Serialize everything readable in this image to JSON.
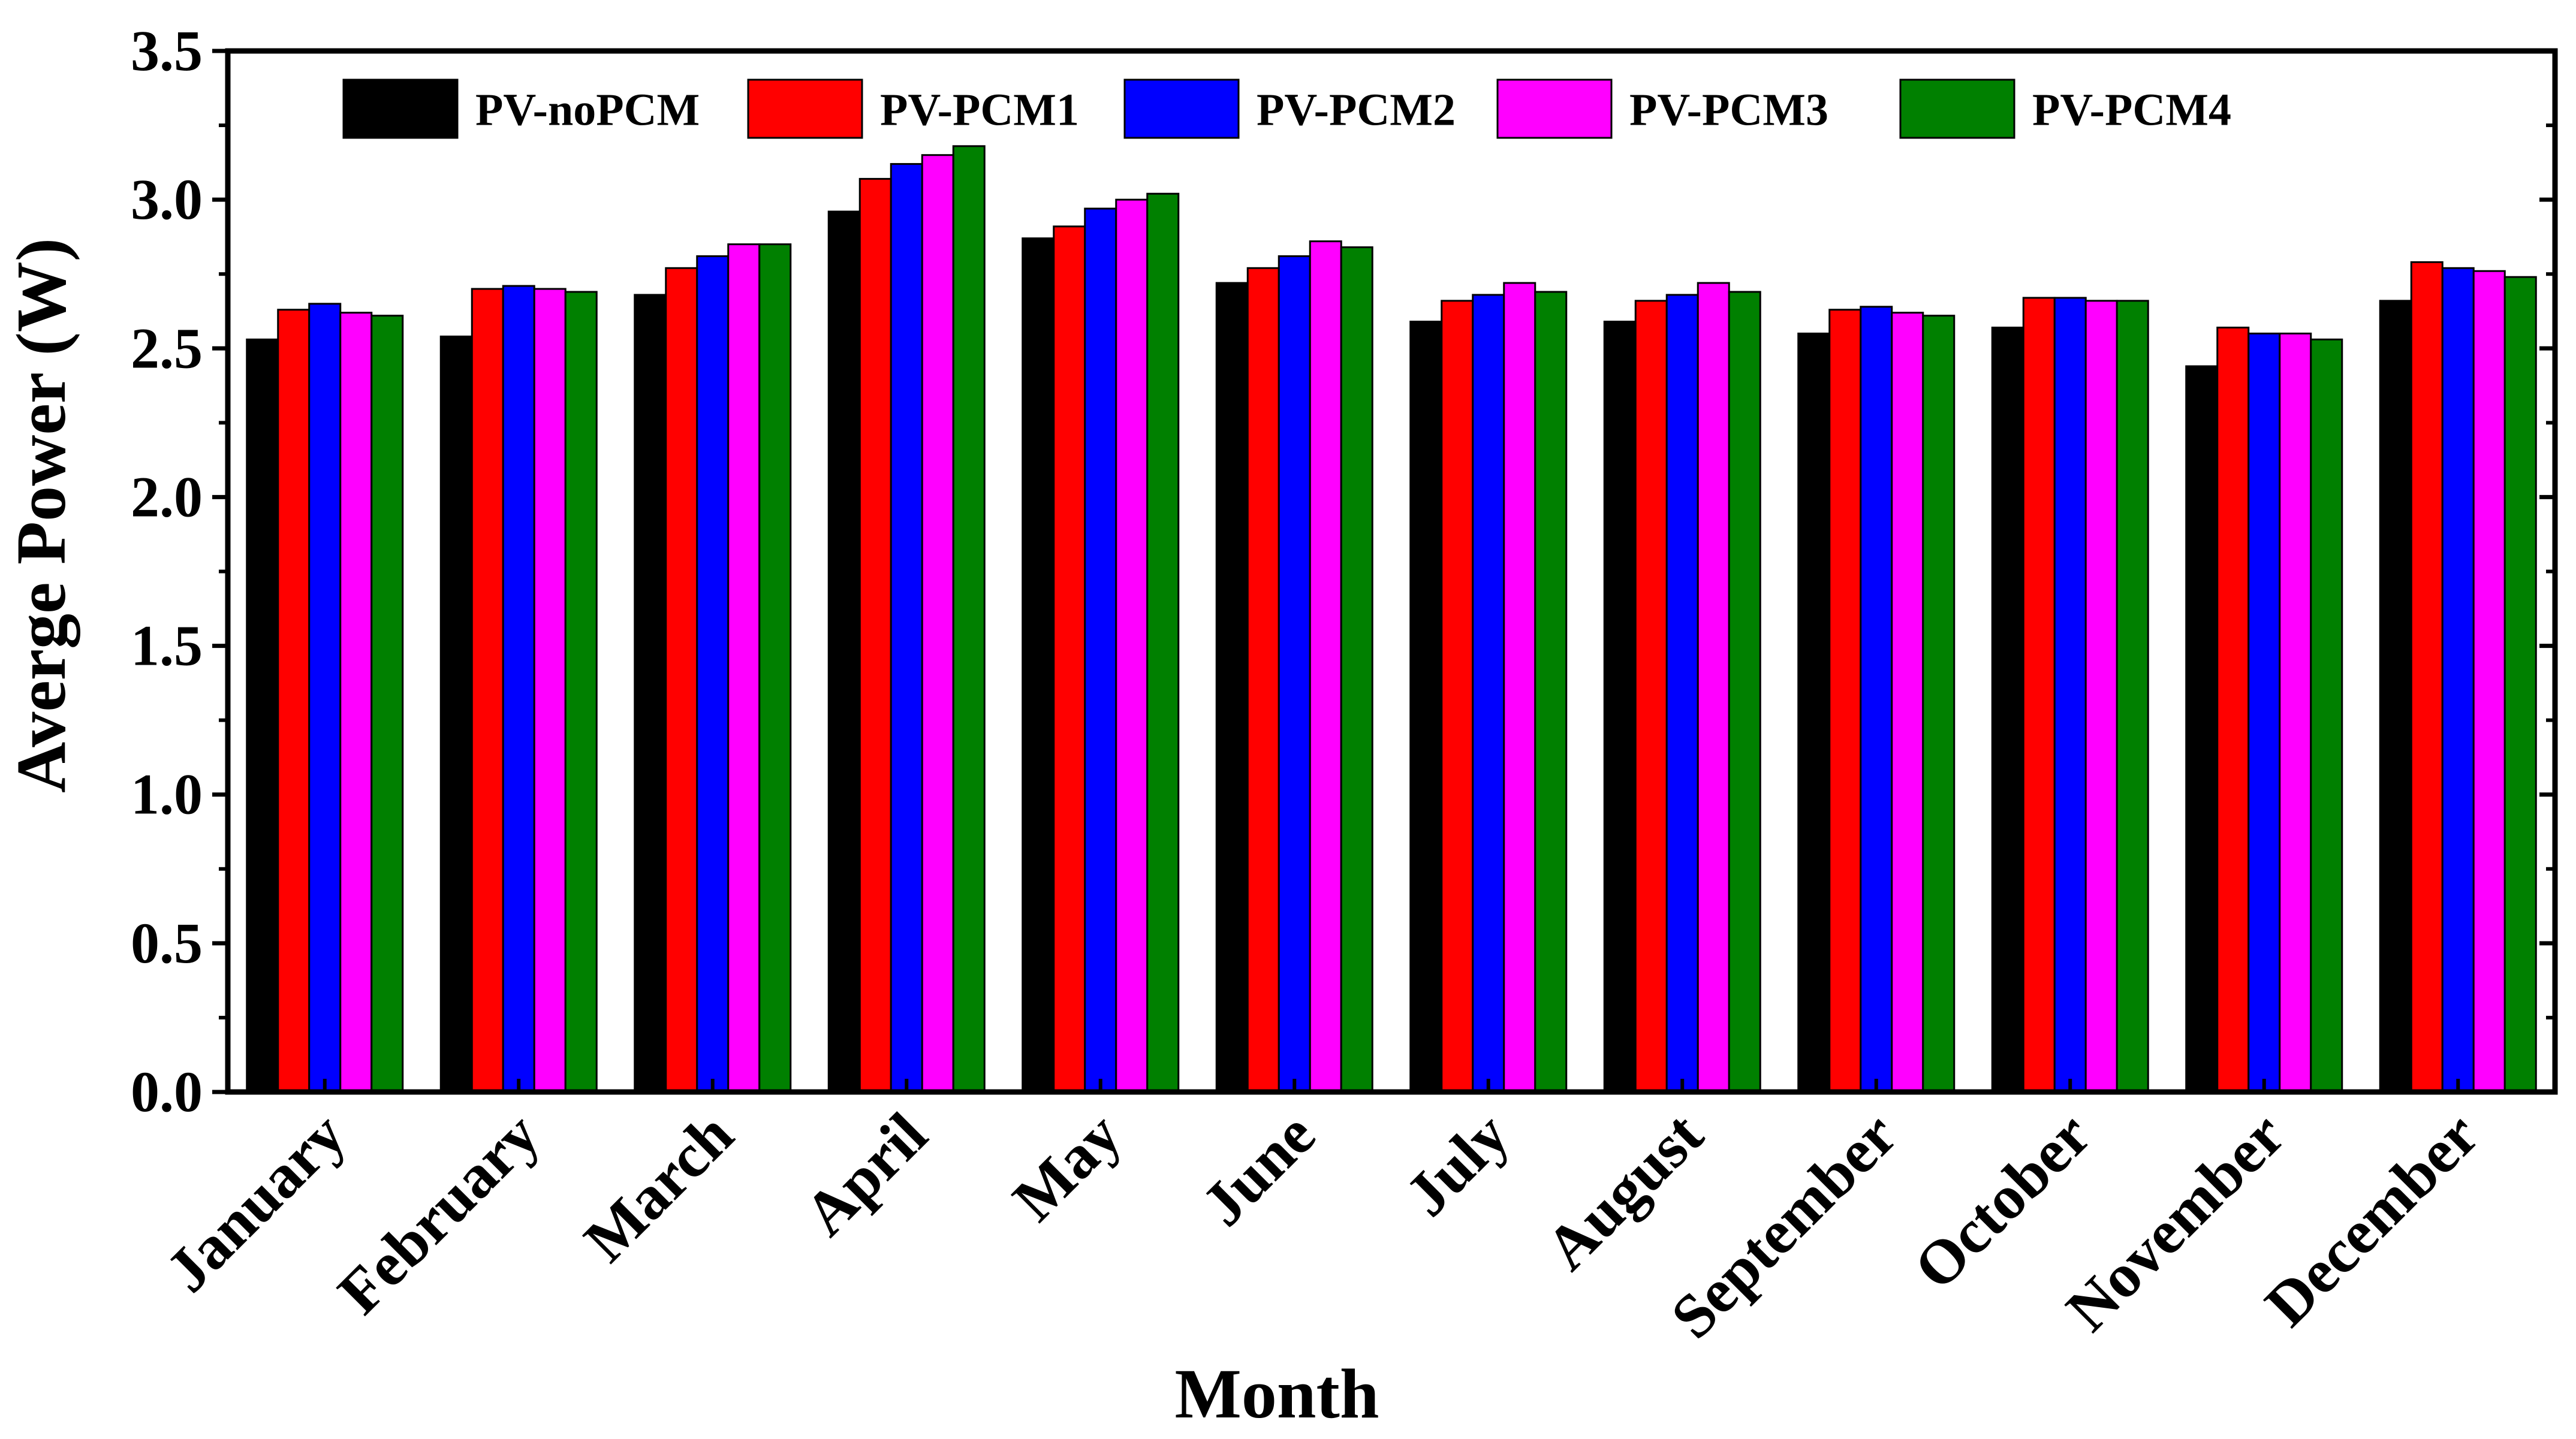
{
  "chart_data": {
    "type": "bar",
    "title": "",
    "xlabel": "Month",
    "ylabel": "Averge Power (W)",
    "ylim": [
      0,
      3.5
    ],
    "yticks": [
      "0.0",
      "0.5",
      "1.0",
      "1.5",
      "2.0",
      "2.5",
      "3.0",
      "3.5"
    ],
    "grid": false,
    "legend_position": "top",
    "categories": [
      "January",
      "February",
      "March",
      "April",
      "May",
      "June",
      "July",
      "August",
      "September",
      "October",
      "November",
      "December"
    ],
    "series": [
      {
        "name": "PV-noPCM",
        "color": "#000000",
        "values": [
          2.53,
          2.54,
          2.68,
          2.96,
          2.87,
          2.72,
          2.59,
          2.59,
          2.55,
          2.57,
          2.44,
          2.66
        ]
      },
      {
        "name": "PV-PCM1",
        "color": "#ff0000",
        "values": [
          2.63,
          2.7,
          2.77,
          3.07,
          2.91,
          2.77,
          2.66,
          2.66,
          2.63,
          2.67,
          2.57,
          2.79
        ]
      },
      {
        "name": "PV-PCM2",
        "color": "#0000ff",
        "values": [
          2.65,
          2.71,
          2.81,
          3.12,
          2.97,
          2.81,
          2.68,
          2.68,
          2.64,
          2.67,
          2.55,
          2.77
        ]
      },
      {
        "name": "PV-PCM3",
        "color": "#ff00ff",
        "values": [
          2.62,
          2.7,
          2.85,
          3.15,
          3.0,
          2.86,
          2.72,
          2.72,
          2.62,
          2.66,
          2.55,
          2.76
        ]
      },
      {
        "name": "PV-PCM4",
        "color": "#008000",
        "values": [
          2.61,
          2.69,
          2.85,
          3.18,
          3.02,
          2.84,
          2.69,
          2.69,
          2.61,
          2.66,
          2.53,
          2.74
        ]
      }
    ]
  }
}
